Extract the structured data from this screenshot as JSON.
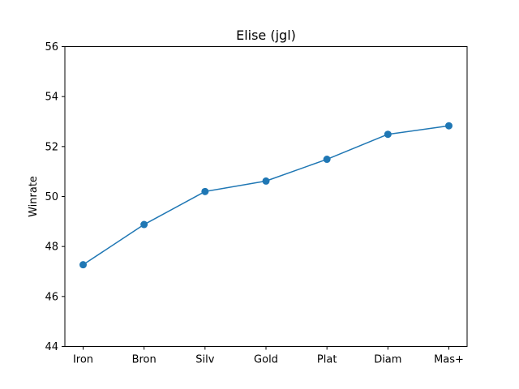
{
  "chart_data": {
    "type": "line",
    "title": "Elise (jgl)",
    "xlabel": "",
    "ylabel": "Winrate",
    "categories": [
      "Iron",
      "Bron",
      "Silv",
      "Gold",
      "Plat",
      "Diam",
      "Mas+"
    ],
    "series": [
      {
        "values": [
          47.27,
          48.88,
          50.2,
          50.62,
          51.49,
          52.49,
          52.83
        ]
      }
    ],
    "ylim": [
      44,
      56
    ],
    "yticks": [
      44,
      46,
      48,
      50,
      52,
      54,
      56
    ],
    "grid": false,
    "markers": true,
    "colors": {
      "line": "#1f77b4",
      "marker": "#1f77b4"
    }
  }
}
